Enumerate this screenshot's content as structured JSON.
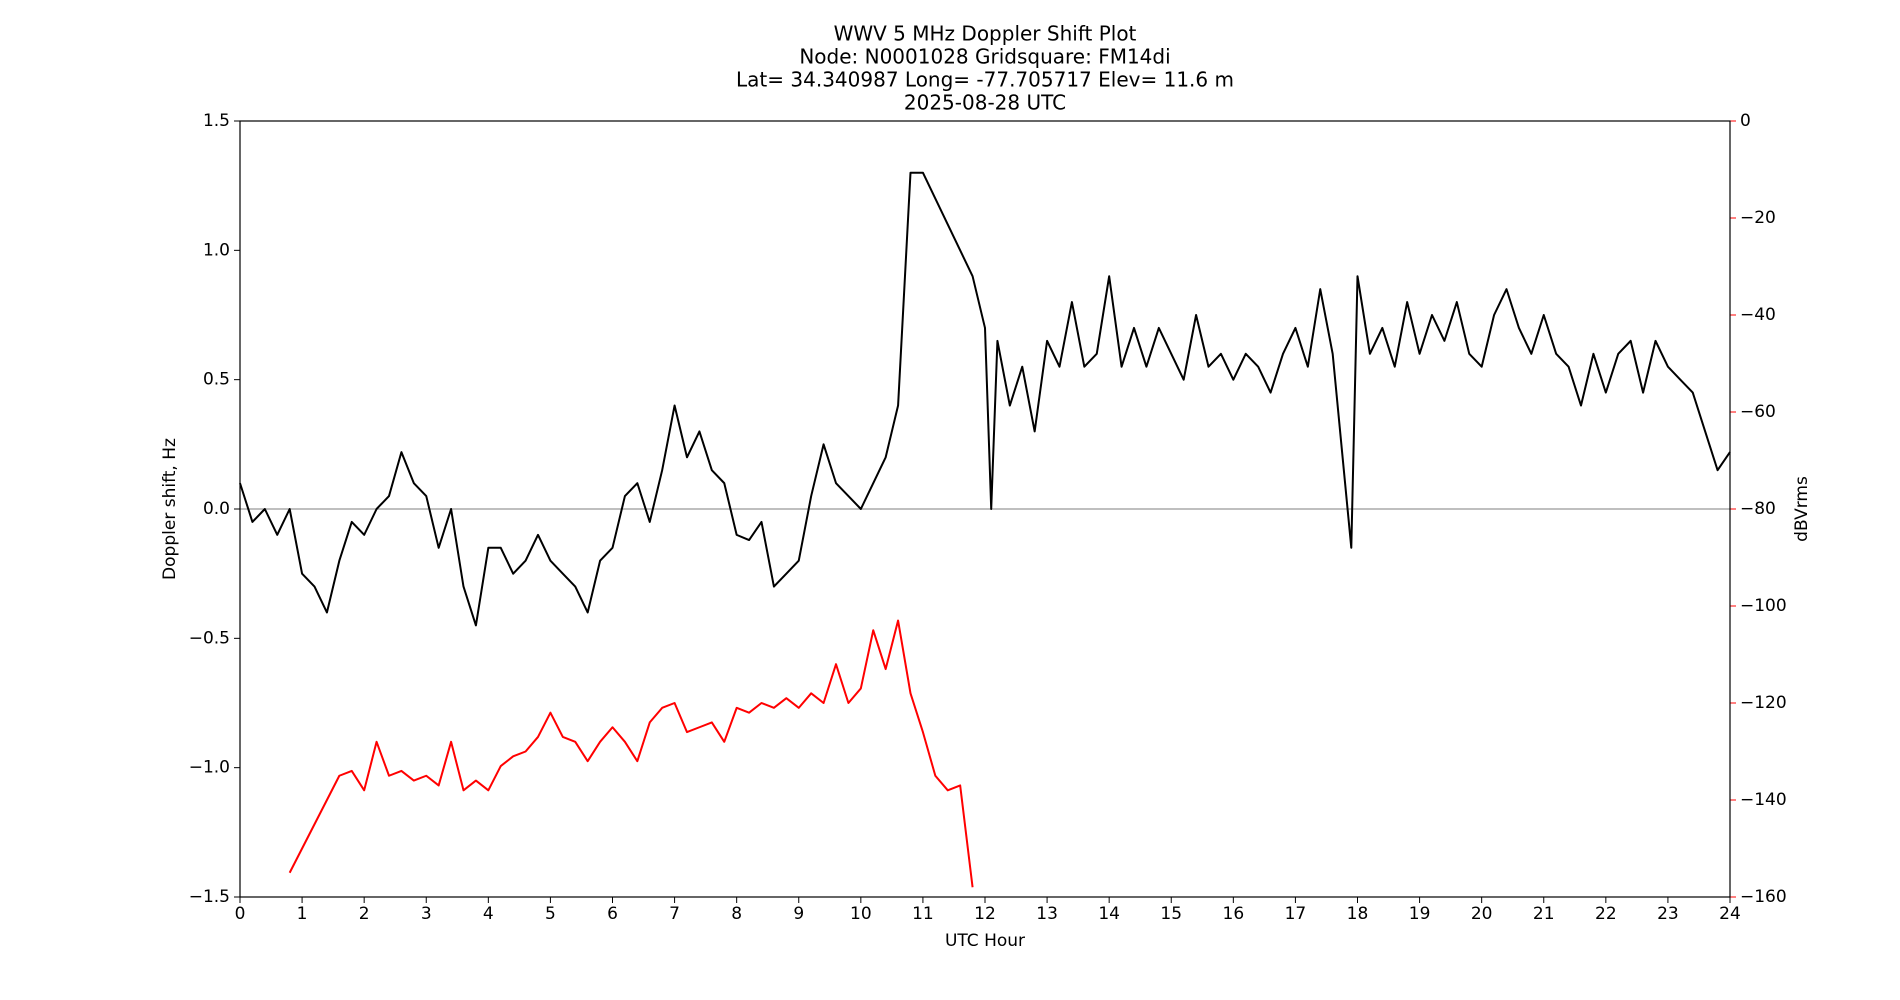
{
  "chart_data": {
    "type": "line",
    "title": [
      "WWV 5 MHz Doppler Shift Plot",
      "Node:  N0001028     Gridsquare:  FM14di",
      "Lat= 34.340987    Long= -77.705717    Elev= 11.6 m",
      "2025-08-28  UTC"
    ],
    "xlabel": "UTC Hour",
    "ylabel": "Doppler shift, Hz",
    "y2label": "dBVrms",
    "xlim": [
      0,
      24
    ],
    "xticks": [
      0,
      1,
      2,
      3,
      4,
      5,
      6,
      7,
      8,
      9,
      10,
      11,
      12,
      13,
      14,
      15,
      16,
      17,
      18,
      19,
      20,
      21,
      22,
      23,
      24
    ],
    "ylim": [
      -1.5,
      1.5
    ],
    "yticks": [
      {
        "value": -1.5,
        "label": "−1.5"
      },
      {
        "value": -1,
        "label": "−1.0"
      },
      {
        "value": -0.5,
        "label": "−0.5"
      },
      {
        "value": 0,
        "label": "0.0"
      },
      0.5,
      {
        "value": 1,
        "label": "1.0"
      },
      1.5
    ],
    "y2lim": [
      -160,
      0
    ],
    "y2ticks": [
      {
        "value": -160,
        "label": "−160"
      },
      {
        "value": -140,
        "label": "−140"
      },
      {
        "value": -120,
        "label": "−120"
      },
      {
        "value": -100,
        "label": "−100"
      },
      {
        "value": -80,
        "label": "−80"
      },
      {
        "value": -60,
        "label": "−60"
      },
      {
        "value": -40,
        "label": "−40"
      },
      {
        "value": -20,
        "label": "−20"
      },
      0
    ],
    "axhline": 0,
    "axhline_color": "#999999",
    "y2color": "#ff0000",
    "x": [
      0,
      0.2,
      0.4,
      0.6,
      0.8,
      1,
      1.2,
      1.4,
      1.6,
      1.8,
      2,
      2.2,
      2.4,
      2.6,
      2.8,
      3,
      3.2,
      3.4,
      3.6,
      3.8,
      4,
      4.2,
      4.4,
      4.6,
      4.8,
      5,
      5.2,
      5.4,
      5.6,
      5.8,
      6,
      6.2,
      6.4,
      6.6,
      6.8,
      7,
      7.2,
      7.4,
      7.6,
      7.8,
      8,
      8.2,
      8.4,
      8.6,
      8.8,
      9,
      9.2,
      9.4,
      9.6,
      9.8,
      10,
      10.2,
      10.4,
      10.6,
      10.8,
      11,
      11.2,
      11.4,
      11.6,
      11.8,
      12,
      12.1,
      12.2,
      12.4,
      12.6,
      12.8,
      13,
      13.2,
      13.4,
      13.6,
      13.8,
      14,
      14.2,
      14.4,
      14.6,
      14.8,
      15,
      15.2,
      15.4,
      15.6,
      15.8,
      16,
      16.2,
      16.4,
      16.6,
      16.8,
      17,
      17.2,
      17.4,
      17.6,
      17.8,
      17.9,
      18,
      18.2,
      18.4,
      18.6,
      18.8,
      19,
      19.2,
      19.4,
      19.6,
      19.8,
      20,
      20.2,
      20.4,
      20.6,
      20.8,
      21,
      21.2,
      21.4,
      21.6,
      21.8,
      22,
      22.2,
      22.4,
      22.6,
      22.8,
      23,
      23.2,
      23.4,
      23.6,
      23.8,
      24
    ],
    "series": [
      {
        "name": "Doppler shift",
        "color": "#000000",
        "values": [
          0.1,
          -0.05,
          0.0,
          -0.1,
          0.0,
          -0.25,
          -0.3,
          -0.4,
          -0.2,
          -0.05,
          -0.1,
          0.0,
          0.05,
          0.22,
          0.1,
          0.05,
          -0.15,
          0.0,
          -0.3,
          -0.45,
          -0.15,
          -0.15,
          -0.25,
          -0.2,
          -0.1,
          -0.2,
          -0.25,
          -0.3,
          -0.4,
          -0.2,
          -0.15,
          0.05,
          0.1,
          -0.05,
          0.15,
          0.4,
          0.2,
          0.3,
          0.15,
          0.1,
          -0.1,
          -0.12,
          -0.05,
          -0.3,
          -0.25,
          -0.2,
          0.05,
          0.25,
          0.1,
          0.05,
          0.0,
          0.1,
          0.2,
          0.4,
          1.3,
          1.3,
          1.2,
          1.1,
          1.0,
          0.9,
          0.7,
          0.0,
          0.65,
          0.4,
          0.55,
          0.3,
          0.65,
          0.55,
          0.8,
          0.55,
          0.6,
          0.9,
          0.55,
          0.7,
          0.55,
          0.7,
          0.6,
          0.5,
          0.75,
          0.55,
          0.6,
          0.5,
          0.6,
          0.55,
          0.45,
          0.6,
          0.7,
          0.55,
          0.85,
          0.6,
          0.1,
          -0.15,
          0.9,
          0.6,
          0.7,
          0.55,
          0.8,
          0.6,
          0.75,
          0.65,
          0.8,
          0.6,
          0.55,
          0.75,
          0.85,
          0.7,
          0.6,
          0.75,
          0.6,
          0.55,
          0.4,
          0.6,
          0.45,
          0.6,
          0.65,
          0.45,
          0.65,
          0.55,
          0.5,
          0.45,
          0.3,
          0.15,
          0.22
        ]
      },
      {
        "name": "dBVrms",
        "color": "#ff0000",
        "axis": "y2",
        "values": [
          null,
          null,
          null,
          null,
          -155,
          -150,
          -145,
          -140,
          -135,
          -134,
          -138,
          -128,
          -135,
          -134,
          -136,
          -135,
          -137,
          -128,
          -138,
          -136,
          -138,
          -133,
          -131,
          -130,
          -127,
          -122,
          -127,
          -128,
          -132,
          -128,
          -125,
          -128,
          -132,
          -124,
          -121,
          -120,
          -126,
          -125,
          -124,
          -128,
          -121,
          -122,
          -120,
          -121,
          -119,
          -121,
          -118,
          -120,
          -112,
          -120,
          -117,
          -105,
          -113,
          -103,
          -118,
          -126,
          -135,
          -138,
          -137,
          -158,
          null,
          null,
          null,
          null,
          null,
          null,
          null,
          null,
          null,
          null,
          null,
          null,
          null,
          null,
          null,
          null,
          null,
          null,
          null,
          null,
          null,
          null,
          null,
          null,
          null,
          null,
          null,
          null,
          null,
          null,
          null,
          null,
          null,
          null,
          null,
          null,
          null,
          null,
          null,
          null,
          null,
          null,
          null,
          null,
          null,
          null,
          null,
          null,
          null,
          null,
          null,
          null,
          null,
          null,
          null,
          null,
          null,
          null,
          null,
          null,
          null,
          null,
          null
        ]
      }
    ]
  }
}
